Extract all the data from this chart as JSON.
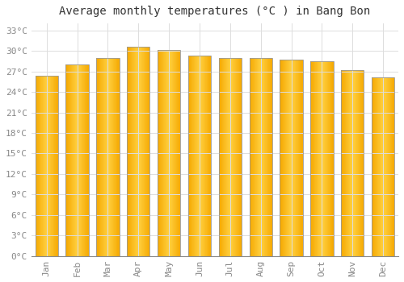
{
  "title": "Average monthly temperatures (°C ) in Bang Bon",
  "months": [
    "Jan",
    "Feb",
    "Mar",
    "Apr",
    "May",
    "Jun",
    "Jul",
    "Aug",
    "Sep",
    "Oct",
    "Nov",
    "Dec"
  ],
  "values": [
    26.3,
    28.0,
    29.0,
    30.6,
    30.1,
    29.3,
    29.0,
    29.0,
    28.7,
    28.5,
    27.2,
    26.1
  ],
  "bar_color_center": "#FFD040",
  "bar_color_edge": "#F5A800",
  "bar_border_color": "#999999",
  "background_color": "#FFFFFF",
  "grid_color": "#DDDDDD",
  "title_fontsize": 10,
  "tick_label_color": "#888888",
  "axis_label_fontsize": 8,
  "ylim": [
    0,
    34
  ],
  "yticks": [
    0,
    3,
    6,
    9,
    12,
    15,
    18,
    21,
    24,
    27,
    30,
    33
  ]
}
